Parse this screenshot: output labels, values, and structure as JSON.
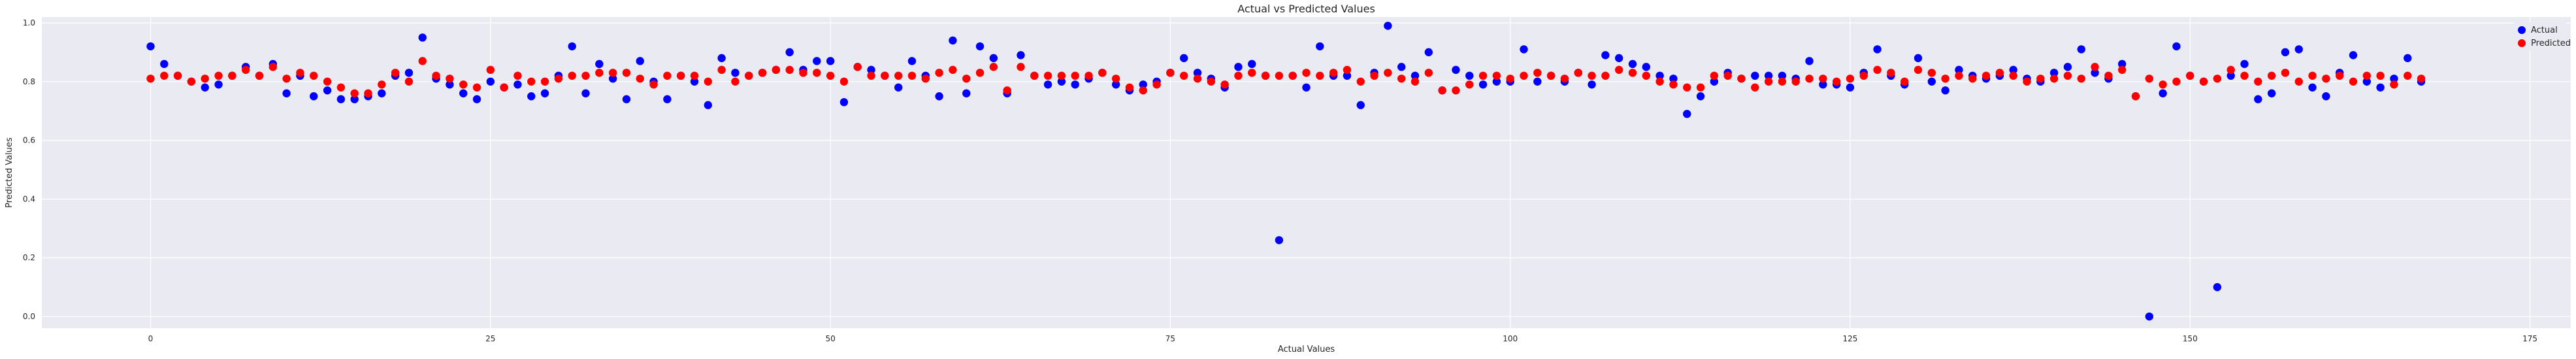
{
  "chart_data": {
    "type": "scatter",
    "title": "Actual vs Predicted Values",
    "xlabel": "Actual Values",
    "ylabel": "Predicted Values",
    "xlim": [
      -8,
      178
    ],
    "ylim": [
      -0.04,
      1.02
    ],
    "xticks": [
      0,
      25,
      50,
      75,
      100,
      125,
      150,
      175
    ],
    "yticks": [
      0.0,
      0.2,
      0.4,
      0.6,
      0.8,
      1.0
    ],
    "xtick_labels": [
      "0",
      "25",
      "50",
      "75",
      "100",
      "125",
      "150",
      "175"
    ],
    "ytick_labels": [
      "0.0",
      "0.2",
      "0.4",
      "0.6",
      "0.8",
      "1.0"
    ],
    "grid": true,
    "legend_position": "top-right",
    "series": [
      {
        "name": "Actual",
        "color": "#0000ff",
        "y": [
          0.92,
          0.86,
          0.82,
          0.8,
          0.78,
          0.79,
          0.82,
          0.85,
          0.82,
          0.86,
          0.76,
          0.82,
          0.75,
          0.77,
          0.74,
          0.74,
          0.75,
          0.76,
          0.82,
          0.83,
          0.95,
          0.81,
          0.79,
          0.76,
          0.74,
          0.8,
          0.78,
          0.79,
          0.75,
          0.76,
          0.82,
          0.92,
          0.76,
          0.86,
          0.81,
          0.74,
          0.87,
          0.8,
          0.74,
          0.82,
          0.8,
          0.72,
          0.88,
          0.83,
          0.82,
          0.83,
          0.84,
          0.9,
          0.84,
          0.87,
          0.87,
          0.73,
          0.85,
          0.84,
          0.82,
          0.78,
          0.87,
          0.82,
          0.75,
          0.94,
          0.76,
          0.92,
          0.88,
          0.76,
          0.89,
          0.82,
          0.79,
          0.8,
          0.79,
          0.81,
          0.83,
          0.79,
          0.77,
          0.79,
          0.8,
          0.83,
          0.88,
          0.83,
          0.81,
          0.78,
          0.85,
          0.86,
          0.82,
          0.26,
          0.82,
          0.78,
          0.92,
          0.82,
          0.82,
          0.72,
          0.83,
          0.99,
          0.85,
          0.82,
          0.9,
          0.77,
          0.84,
          0.82,
          0.79,
          0.8,
          0.8,
          0.91,
          0.8,
          0.82,
          0.8,
          0.83,
          0.79,
          0.89,
          0.88,
          0.86,
          0.85,
          0.82,
          0.81,
          0.69,
          0.75,
          0.8,
          0.83,
          0.81,
          0.82,
          0.82,
          0.82,
          0.81,
          0.87,
          0.79,
          0.79,
          0.78,
          0.83,
          0.91,
          0.82,
          0.79,
          0.88,
          0.8,
          0.77,
          0.84,
          0.82,
          0.81,
          0.82,
          0.84,
          0.81,
          0.8,
          0.83,
          0.85,
          0.91,
          0.83,
          0.81,
          0.86,
          0.75,
          0.0,
          0.76,
          0.92,
          0.82,
          0.8,
          0.1,
          0.82,
          0.86,
          0.74,
          0.76,
          0.9,
          0.91,
          0.78,
          0.75,
          0.83,
          0.89,
          0.8,
          0.78,
          0.81,
          0.88,
          0.8
        ]
      },
      {
        "name": "Predicted",
        "color": "#ff0000",
        "y": [
          0.81,
          0.82,
          0.82,
          0.8,
          0.81,
          0.82,
          0.82,
          0.84,
          0.82,
          0.85,
          0.81,
          0.83,
          0.82,
          0.8,
          0.78,
          0.76,
          0.76,
          0.79,
          0.83,
          0.8,
          0.87,
          0.82,
          0.81,
          0.79,
          0.78,
          0.84,
          0.78,
          0.82,
          0.8,
          0.8,
          0.81,
          0.82,
          0.82,
          0.83,
          0.83,
          0.83,
          0.81,
          0.79,
          0.82,
          0.82,
          0.82,
          0.8,
          0.84,
          0.8,
          0.82,
          0.83,
          0.84,
          0.84,
          0.83,
          0.83,
          0.82,
          0.8,
          0.85,
          0.82,
          0.82,
          0.82,
          0.82,
          0.81,
          0.83,
          0.84,
          0.81,
          0.83,
          0.85,
          0.77,
          0.85,
          0.82,
          0.82,
          0.82,
          0.82,
          0.82,
          0.83,
          0.81,
          0.78,
          0.77,
          0.79,
          0.83,
          0.82,
          0.81,
          0.8,
          0.79,
          0.82,
          0.83,
          0.82,
          0.82,
          0.82,
          0.83,
          0.82,
          0.83,
          0.84,
          0.8,
          0.82,
          0.83,
          0.81,
          0.8,
          0.83,
          0.77,
          0.77,
          0.79,
          0.82,
          0.82,
          0.81,
          0.82,
          0.83,
          0.82,
          0.81,
          0.83,
          0.82,
          0.82,
          0.84,
          0.83,
          0.82,
          0.8,
          0.79,
          0.78,
          0.78,
          0.82,
          0.82,
          0.81,
          0.78,
          0.8,
          0.8,
          0.8,
          0.81,
          0.81,
          0.8,
          0.81,
          0.82,
          0.84,
          0.83,
          0.8,
          0.84,
          0.83,
          0.81,
          0.82,
          0.81,
          0.82,
          0.83,
          0.82,
          0.8,
          0.81,
          0.81,
          0.82,
          0.81,
          0.85,
          0.82,
          0.84,
          0.75,
          0.81,
          0.79,
          0.8,
          0.82,
          0.8,
          0.81,
          0.84,
          0.82,
          0.8,
          0.82,
          0.83,
          0.8,
          0.82,
          0.81,
          0.82,
          0.8,
          0.82,
          0.82,
          0.79,
          0.82,
          0.81
        ]
      }
    ]
  }
}
